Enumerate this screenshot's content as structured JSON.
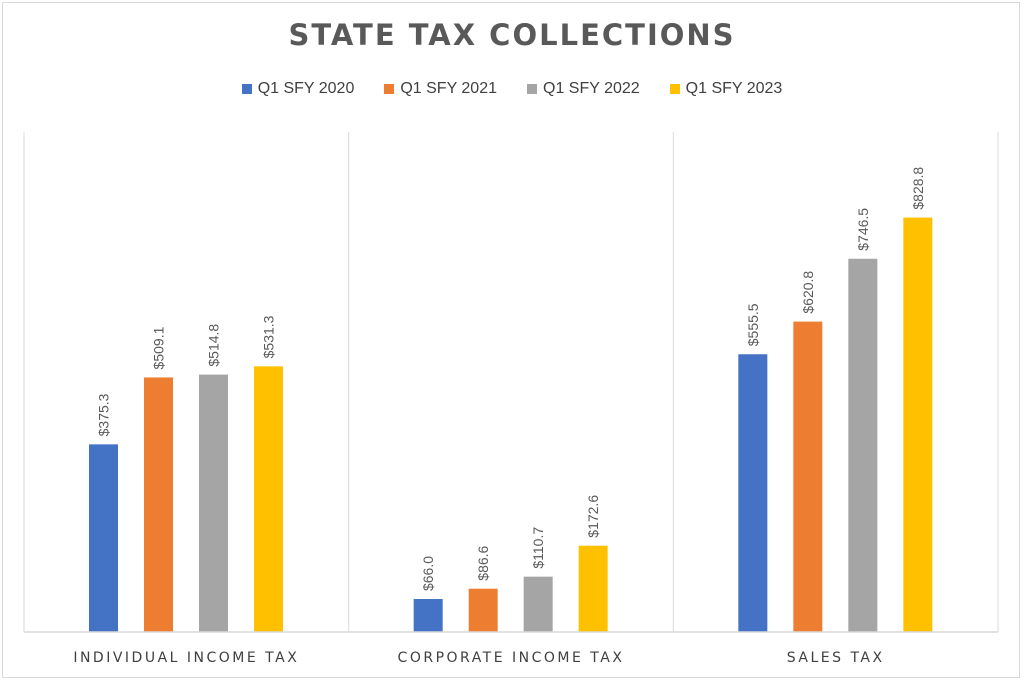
{
  "chart_data": {
    "type": "bar",
    "title": "STATE TAX COLLECTIONS",
    "categories": [
      "INDIVIDUAL INCOME TAX",
      "CORPORATE INCOME TAX",
      "SALES TAX"
    ],
    "series": [
      {
        "name": "Q1 SFY 2020",
        "color": "#4472c4",
        "values": [
          375.3,
          66.0,
          555.5
        ],
        "labels": [
          "$375.3",
          "$66.0",
          "$555.5"
        ]
      },
      {
        "name": "Q1 SFY 2021",
        "color": "#ed7d31",
        "values": [
          509.1,
          86.6,
          620.8
        ],
        "labels": [
          "$509.1",
          "$86.6",
          "$620.8"
        ]
      },
      {
        "name": "Q1 SFY 2022",
        "color": "#a5a5a5",
        "values": [
          514.8,
          110.7,
          746.5
        ],
        "labels": [
          "$514.8",
          "$110.7",
          "$746.5"
        ]
      },
      {
        "name": "Q1 SFY 2023",
        "color": "#ffc000",
        "values": [
          531.3,
          172.6,
          828.8
        ],
        "labels": [
          "$531.3",
          "$172.6",
          "$828.8"
        ]
      }
    ],
    "ylim": [
      0,
      1100
    ],
    "grid": false,
    "legend_position": "top"
  }
}
